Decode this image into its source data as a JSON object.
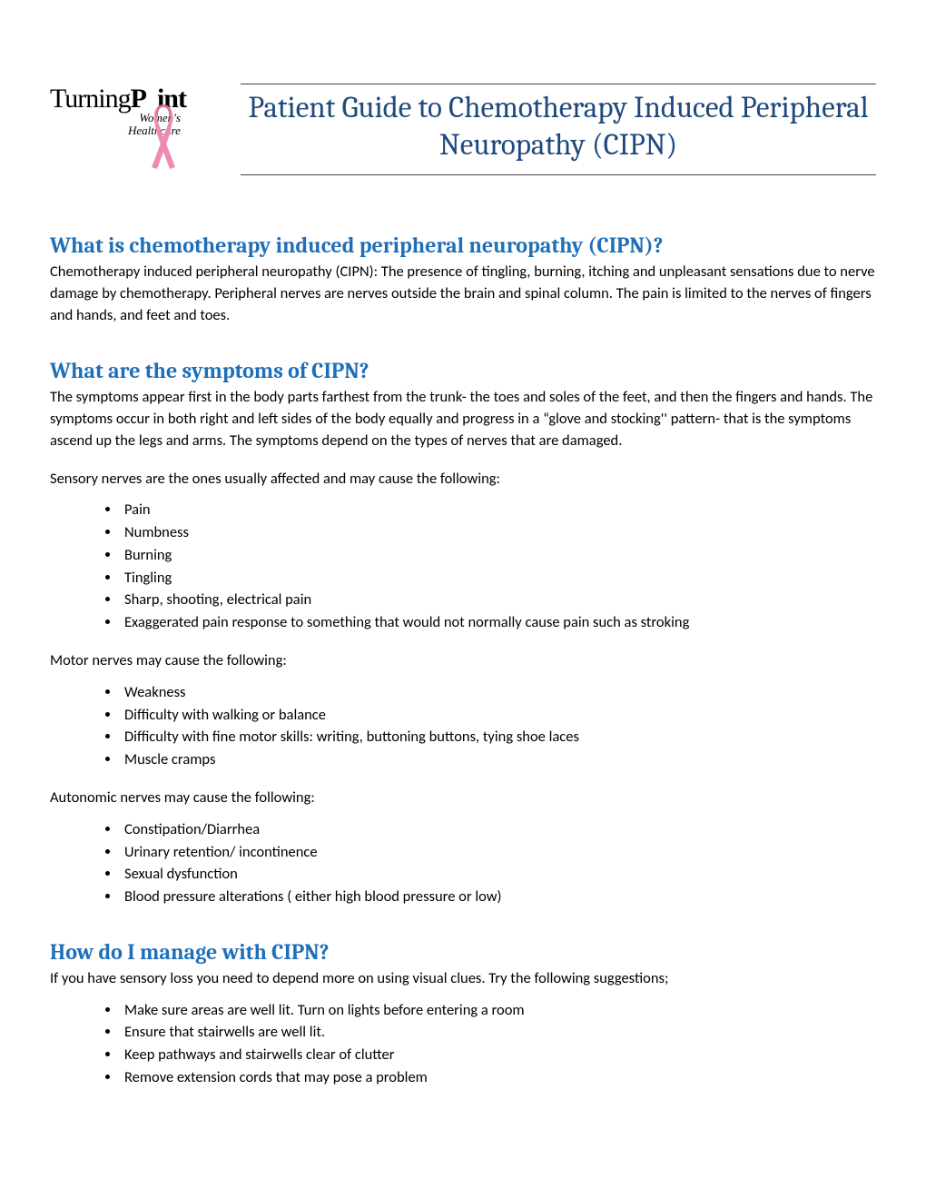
{
  "logo": {
    "line1_a": "Turning",
    "line1_b": "P",
    "line1_c": "int",
    "sub1": "Women's",
    "sub2": "Healthcare",
    "ribbon_color": "#ed8bb3"
  },
  "colors": {
    "title": "#1f497d",
    "heading": "#1f6fb8",
    "rule": "#444444",
    "text": "#000000"
  },
  "title": "Patient Guide to Chemotherapy Induced Peripheral Neuropathy (CIPN)",
  "sections": {
    "what_is": {
      "heading": "What is chemotherapy induced peripheral neuropathy (CIPN)?",
      "body": "Chemotherapy induced peripheral neuropathy (CIPN):  The presence of tingling, burning, itching and unpleasant sensations due to nerve damage by chemotherapy. Peripheral nerves are nerves outside the brain and spinal column. The pain is limited to the nerves of fingers and hands, and feet and toes."
    },
    "symptoms": {
      "heading": "What are the symptoms of CIPN?",
      "body": "The symptoms appear first in the body parts farthest from the trunk- the toes and soles of the feet, and then the fingers and hands. The symptoms occur in both right and left sides of the body equally and progress in a “glove and stocking'' pattern- that is the symptoms ascend up the legs and arms.   The symptoms depend on the types of nerves that are damaged.",
      "sensory_lead": " Sensory nerves are the ones usually affected and may cause the following:",
      "sensory_items": [
        "Pain",
        "Numbness",
        "Burning",
        "Tingling",
        "Sharp, shooting, electrical pain",
        "Exaggerated pain response to something that would not normally cause pain such as stroking"
      ],
      "motor_lead": "Motor nerves may cause the following:",
      "motor_items": [
        "Weakness",
        "Difficulty with walking or balance",
        "Difficulty with fine motor skills: writing, buttoning buttons, tying shoe laces",
        "Muscle cramps"
      ],
      "autonomic_lead": "Autonomic nerves may cause the following:",
      "autonomic_items": [
        "Constipation/Diarrhea",
        "Urinary retention/ incontinence",
        "Sexual dysfunction",
        "Blood pressure alterations ( either high blood pressure or low)"
      ]
    },
    "manage": {
      "heading": "How do I manage with CIPN?",
      "body": "If you have sensory loss you need to depend more on using visual clues. Try the following suggestions;",
      "items": [
        "Make sure areas are well lit. Turn on lights before entering a room",
        "Ensure that stairwells are well lit.",
        "Keep pathways and stairwells clear of clutter",
        "Remove extension cords that may pose a problem"
      ]
    }
  }
}
